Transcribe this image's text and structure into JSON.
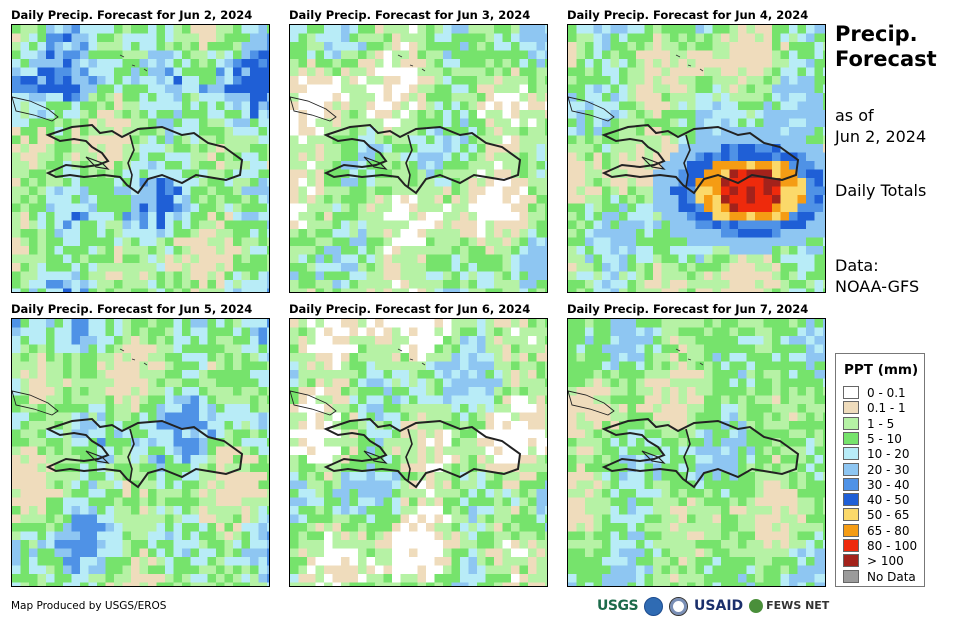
{
  "panels": [
    {
      "title": "Daily Precip. Forecast for Jun 2, 2024",
      "seed": 11,
      "bias": "north"
    },
    {
      "title": "Daily Precip. Forecast for Jun 3, 2024",
      "seed": 23,
      "bias": "dry"
    },
    {
      "title": "Daily Precip. Forecast for Jun 4, 2024",
      "seed": 37,
      "bias": "storm"
    },
    {
      "title": "Daily Precip. Forecast for Jun 5, 2024",
      "seed": 41,
      "bias": "blue"
    },
    {
      "title": "Daily Precip. Forecast for Jun 6, 2024",
      "seed": 53,
      "bias": "mixed"
    },
    {
      "title": "Daily Precip. Forecast for Jun 7, 2024",
      "seed": 67,
      "bias": "green"
    }
  ],
  "side": {
    "title_line1": "Precip.",
    "title_line2": "Forecast",
    "asof_line1": "as of",
    "asof_line2": "Jun 2, 2024",
    "totals": "Daily Totals",
    "data_line1": "Data:",
    "data_line2": "NOAA-GFS"
  },
  "legend": {
    "title": "PPT (mm)",
    "items": [
      {
        "label": "0 - 0.1",
        "color": "#ffffff"
      },
      {
        "label": "0.1 - 1",
        "color": "#efdcbc"
      },
      {
        "label": "1 - 5",
        "color": "#b6f2a5"
      },
      {
        "label": "5 - 10",
        "color": "#76e36c"
      },
      {
        "label": "10 - 20",
        "color": "#b8ecf7"
      },
      {
        "label": "20 - 30",
        "color": "#8ec6f2"
      },
      {
        "label": "30 - 40",
        "color": "#4f92e6"
      },
      {
        "label": "40 - 50",
        "color": "#1f5fd6"
      },
      {
        "label": "50 - 65",
        "color": "#fbd96a"
      },
      {
        "label": "65 - 80",
        "color": "#f59c14"
      },
      {
        "label": "80 - 100",
        "color": "#ee2a0c"
      },
      {
        "label": "> 100",
        "color": "#a3221b"
      },
      {
        "label": "No Data",
        "color": "#9b9b9b"
      }
    ]
  },
  "footer": {
    "credit": "Map Produced by USGS/EROS",
    "logo_usgs": "USGS",
    "logo_usaid": "USAID",
    "logo_fews": "FEWS NET"
  }
}
